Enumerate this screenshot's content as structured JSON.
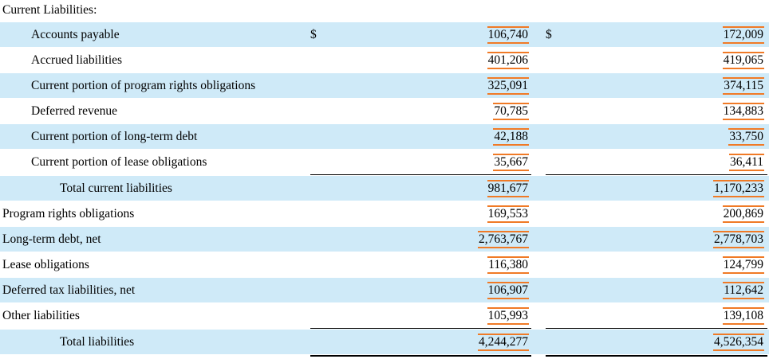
{
  "heading": "Current Liabilities:",
  "currency_symbol": "$",
  "rows": [
    {
      "label": "Accounts payable",
      "col1": "106,740",
      "col2": "172,009"
    },
    {
      "label": "Accrued liabilities",
      "col1": "401,206",
      "col2": "419,065"
    },
    {
      "label": "Current portion of program rights obligations",
      "col1": "325,091",
      "col2": "374,115"
    },
    {
      "label": "Deferred revenue",
      "col1": "70,785",
      "col2": "134,883"
    },
    {
      "label": "Current portion of long-term debt",
      "col1": "42,188",
      "col2": "33,750"
    },
    {
      "label": "Current portion of lease obligations",
      "col1": "35,667",
      "col2": "36,411"
    },
    {
      "label": "Total current liabilities",
      "col1": "981,677",
      "col2": "1,170,233"
    },
    {
      "label": "Program rights obligations",
      "col1": "169,553",
      "col2": "200,869"
    },
    {
      "label": "Long-term debt, net",
      "col1": "2,763,767",
      "col2": "2,778,703"
    },
    {
      "label": "Lease obligations",
      "col1": "116,380",
      "col2": "124,799"
    },
    {
      "label": "Deferred tax liabilities, net",
      "col1": "106,907",
      "col2": "112,642"
    },
    {
      "label": "Other liabilities",
      "col1": "105,993",
      "col2": "139,108"
    },
    {
      "label": "Total liabilities",
      "col1": "4,244,277",
      "col2": "4,526,354"
    }
  ],
  "colors": {
    "row_shading": "#cfeaf8",
    "highlight": "#f07a26"
  }
}
